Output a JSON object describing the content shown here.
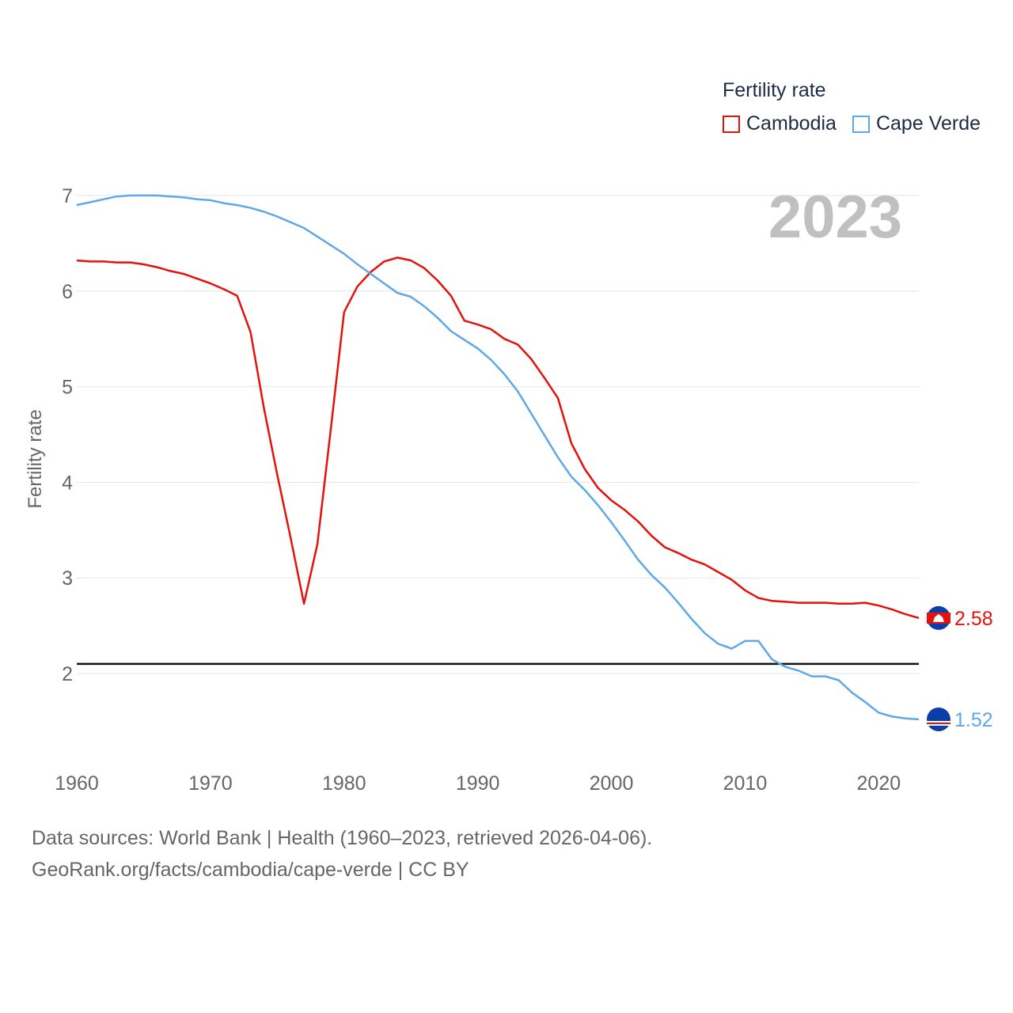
{
  "chart_data": {
    "type": "line",
    "title": "Fertility rate",
    "year_label": "2023",
    "ylabel": "Fertility rate",
    "xlabel": "",
    "xlim": [
      1960,
      2023
    ],
    "ylim": [
      1.2,
      7.2
    ],
    "x_ticks": [
      1960,
      1970,
      1980,
      1990,
      2000,
      2010,
      2020
    ],
    "y_ticks": [
      2,
      3,
      4,
      5,
      6,
      7
    ],
    "reference_line": 2.1,
    "x": [
      1960,
      1961,
      1962,
      1963,
      1964,
      1965,
      1966,
      1967,
      1968,
      1969,
      1970,
      1971,
      1972,
      1973,
      1974,
      1975,
      1976,
      1977,
      1978,
      1979,
      1980,
      1981,
      1982,
      1983,
      1984,
      1985,
      1986,
      1987,
      1988,
      1989,
      1990,
      1991,
      1992,
      1993,
      1994,
      1995,
      1996,
      1997,
      1998,
      1999,
      2000,
      2001,
      2002,
      2003,
      2004,
      2005,
      2006,
      2007,
      2008,
      2009,
      2010,
      2011,
      2012,
      2013,
      2014,
      2015,
      2016,
      2017,
      2018,
      2019,
      2020,
      2021,
      2022,
      2023
    ],
    "series": [
      {
        "name": "Cambodia",
        "color": "#e3120b",
        "end_label": "2.58",
        "values": [
          6.32,
          6.31,
          6.31,
          6.3,
          6.3,
          6.28,
          6.25,
          6.21,
          6.18,
          6.13,
          6.08,
          6.02,
          5.95,
          5.57,
          4.78,
          4.08,
          3.42,
          2.73,
          3.35,
          4.55,
          5.78,
          6.05,
          6.2,
          6.31,
          6.35,
          6.32,
          6.24,
          6.11,
          5.95,
          5.69,
          5.65,
          5.6,
          5.5,
          5.44,
          5.29,
          5.09,
          4.88,
          4.41,
          4.14,
          3.94,
          3.81,
          3.71,
          3.59,
          3.44,
          3.32,
          3.26,
          3.19,
          3.14,
          3.06,
          2.98,
          2.87,
          2.79,
          2.76,
          2.75,
          2.74,
          2.74,
          2.74,
          2.73,
          2.73,
          2.74,
          2.71,
          2.67,
          2.62,
          2.58
        ]
      },
      {
        "name": "Cape Verde",
        "color": "#5fa8e8",
        "end_label": "1.52",
        "values": [
          6.9,
          6.93,
          6.96,
          6.99,
          7.0,
          7.0,
          7.0,
          6.99,
          6.98,
          6.96,
          6.95,
          6.92,
          6.9,
          6.87,
          6.83,
          6.78,
          6.72,
          6.66,
          6.57,
          6.48,
          6.39,
          6.28,
          6.18,
          6.08,
          5.98,
          5.94,
          5.84,
          5.72,
          5.58,
          5.49,
          5.4,
          5.28,
          5.13,
          4.95,
          4.72,
          4.49,
          4.26,
          4.06,
          3.92,
          3.76,
          3.58,
          3.39,
          3.19,
          3.03,
          2.9,
          2.74,
          2.57,
          2.42,
          2.31,
          2.26,
          2.34,
          2.34,
          2.15,
          2.07,
          2.03,
          1.97,
          1.97,
          1.93,
          1.8,
          1.7,
          1.59,
          1.55,
          1.53,
          1.52
        ]
      }
    ]
  },
  "footer": {
    "line1": "Data sources: World Bank | Health (1960–2023, retrieved 2026-04-06).",
    "line2": "GeoRank.org/facts/cambodia/cape-verde | CC BY"
  }
}
